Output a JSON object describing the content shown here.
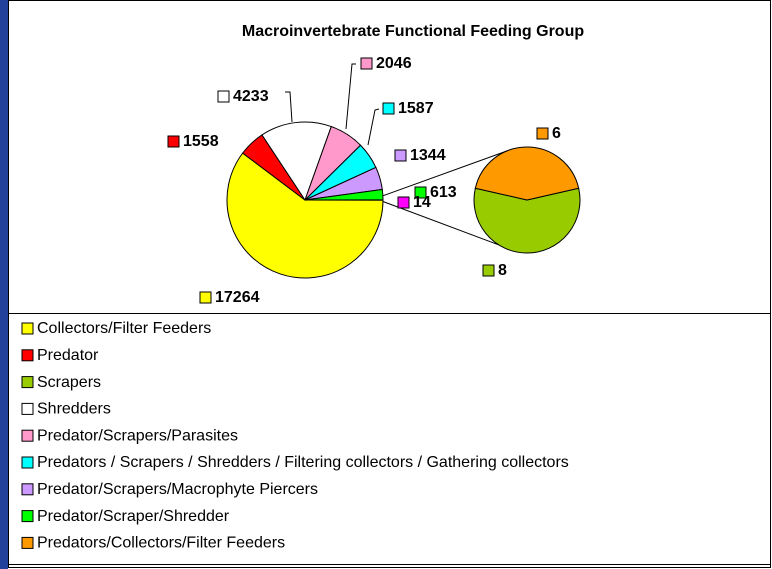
{
  "chart_data": {
    "type": "pie-of-pie",
    "title": "Macroinvertebrate Functional Feeding Group",
    "slices": [
      {
        "name": "Collectors/Filter Feeders",
        "color": "#ffff00",
        "value": 17264,
        "secondary": false
      },
      {
        "name": "Predator",
        "color": "#ff0000",
        "value": 1558,
        "secondary": false
      },
      {
        "name": "Scrapers",
        "color": "#99cc00",
        "value": 8,
        "secondary": true
      },
      {
        "name": "Shredders",
        "color": "#ffffff",
        "value": 4233,
        "secondary": false
      },
      {
        "name": "Predator/Scrapers/Parasites",
        "color": "#ff99cc",
        "value": 2046,
        "secondary": false
      },
      {
        "name": "Predators / Scrapers / Shredders / Filtering collectors / Gathering collectors",
        "color": "#00ffff",
        "value": 1587,
        "secondary": false
      },
      {
        "name": "Predator/Scrapers/Macrophyte Piercers",
        "color": "#cc99ff",
        "value": 1344,
        "secondary": false
      },
      {
        "name": "Predator/Scraper/Shredder",
        "color": "#00ff00",
        "value": 613,
        "secondary": false
      },
      {
        "name": "Predators/Collectors/Filter Feeders",
        "color": "#ff9900",
        "value": 6,
        "secondary": true
      }
    ],
    "other": {
      "value": 14,
      "color": "#ff00ff"
    }
  }
}
